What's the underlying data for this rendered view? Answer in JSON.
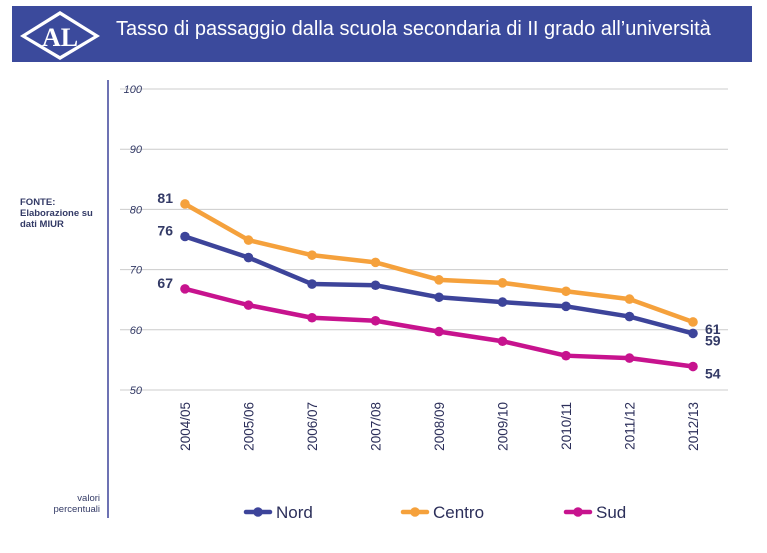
{
  "header": {
    "logo_text": "AL",
    "title": "Tasso di passaggio dalla scuola secondaria di II grado all’università"
  },
  "notes": {
    "source_lines": [
      "FONTE:",
      "Elaborazione su",
      "dati MIUR"
    ],
    "unit_lines": [
      "valori",
      "percentuali"
    ]
  },
  "colors": {
    "header_bg": "#3b4a9c",
    "nord": "#3d449a",
    "centro": "#f5a13c",
    "sud": "#c7138e"
  },
  "chart_data": {
    "type": "line",
    "categories": [
      "2004/05",
      "2005/06",
      "2006/07",
      "2007/08",
      "2008/09",
      "2009/10",
      "2010/11",
      "2011/12",
      "2012/13"
    ],
    "series": [
      {
        "name": "Nord",
        "values": [
          75.5,
          72.0,
          67.6,
          67.4,
          65.4,
          64.6,
          63.9,
          62.2,
          59.4
        ],
        "first_label": "76",
        "last_label": "59"
      },
      {
        "name": "Centro",
        "values": [
          80.9,
          74.9,
          72.4,
          71.2,
          68.3,
          67.8,
          66.4,
          65.1,
          61.3
        ],
        "first_label": "81",
        "last_label": "61"
      },
      {
        "name": "Sud",
        "values": [
          66.8,
          64.1,
          62.0,
          61.5,
          59.7,
          58.1,
          55.7,
          55.3,
          53.9
        ],
        "first_label": "67",
        "last_label": "54"
      }
    ],
    "yticks": [
      50,
      60,
      70,
      80,
      90,
      100
    ],
    "ylim": [
      50,
      100
    ],
    "grid": true,
    "legend_position": "bottom"
  }
}
